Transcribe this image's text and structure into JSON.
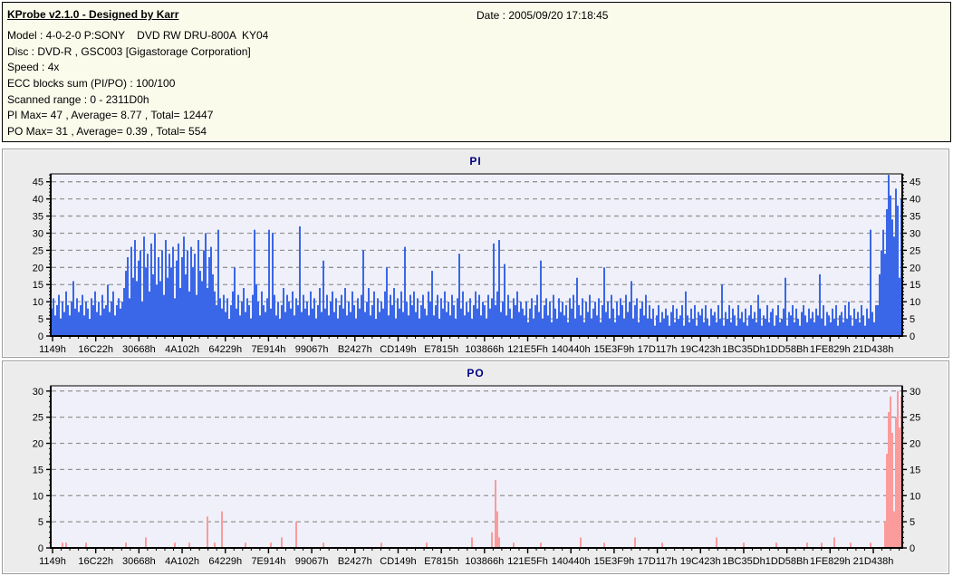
{
  "header": {
    "title": "KProbe v2.1.0 - Designed by Karr",
    "date": "Date : 2005/09/20 17:18:45",
    "lines": [
      "Model : 4-0-2-0 P:SONY    DVD RW DRU-800A  KY04",
      "Disc : DVD-R , GSC003 [Gigastorage Corporation]",
      "Speed : 4x",
      "ECC blocks sum (PI/PO) : 100/100",
      "Scanned range : 0 - 2311D0h",
      "PI Max= 47 , Average= 8.77 , Total= 12447",
      "PO Max= 31 , Average= 0.39 , Total= 554"
    ]
  },
  "colors": {
    "header_bg": "#fbfbec",
    "panel_bg": "#ececec",
    "plot_bg": "#f0f0fa",
    "grid": "#959595",
    "axis": "#000000",
    "title_text": "#000080",
    "pi_bar": "#3a67e8",
    "po_bar": "#fb9b9b"
  },
  "x_labels": [
    "1149h",
    "16C22h",
    "30668h",
    "4A102h",
    "64229h",
    "7E914h",
    "99067h",
    "B2427h",
    "CD149h",
    "E7815h",
    "103866h",
    "121E5Fh",
    "140440h",
    "15E3F9h",
    "17D117h",
    "19C423h",
    "1BC35Dh",
    "1DD58Bh",
    "1FE829h",
    "21D438h"
  ],
  "chart_data": [
    {
      "type": "bar",
      "title": "PI",
      "color": "#3a67e8",
      "ylim": [
        0,
        47.3
      ],
      "yticks": [
        0,
        5,
        10,
        15,
        20,
        25,
        30,
        35,
        40,
        45
      ],
      "grid": "dashed",
      "legend": "none",
      "x_axis_note": "hex sector addresses, scanned range 0 - 2311D0h",
      "stats": {
        "max": 47,
        "average": 8.77,
        "total": 12447
      },
      "values": [
        8,
        11,
        6,
        9,
        12,
        5,
        10,
        7,
        13,
        9,
        6,
        10,
        16,
        8,
        11,
        7,
        9,
        12,
        6,
        10,
        8,
        5,
        11,
        9,
        13,
        7,
        10,
        6,
        12,
        8,
        9,
        15,
        7,
        10,
        13,
        6,
        9,
        11,
        8,
        10,
        14,
        19,
        23,
        11,
        26,
        17,
        28,
        16,
        22,
        25,
        10,
        29,
        20,
        24,
        13,
        27,
        18,
        30,
        15,
        23,
        16,
        25,
        12,
        28,
        17,
        24,
        20,
        26,
        11,
        22,
        27,
        14,
        23,
        29,
        18,
        25,
        13,
        26,
        20,
        24,
        12,
        28,
        19,
        16,
        25,
        30,
        14,
        23,
        26,
        18,
        13,
        9,
        31,
        11,
        8,
        12,
        7,
        11,
        5,
        9,
        13,
        20,
        8,
        12,
        6,
        10,
        14,
        7,
        11,
        9,
        5,
        12,
        31,
        15,
        10,
        6,
        13,
        9,
        7,
        11,
        31,
        8,
        30,
        12,
        6,
        10,
        5,
        9,
        14,
        7,
        12,
        10,
        8,
        13,
        6,
        11,
        9,
        32,
        7,
        12,
        8,
        10,
        6,
        13,
        8,
        11,
        5,
        9,
        14,
        7,
        22,
        8,
        12,
        6,
        10,
        13,
        7,
        11,
        5,
        9,
        12,
        8,
        14,
        6,
        10,
        7,
        13,
        9,
        5,
        11,
        8,
        12,
        25,
        7,
        10,
        14,
        6,
        9,
        13,
        5,
        11,
        7,
        10,
        8,
        13,
        20,
        6,
        12,
        9,
        14,
        5,
        11,
        8,
        13,
        7,
        26,
        10,
        6,
        12,
        9,
        13,
        7,
        11,
        5,
        9,
        12,
        8,
        6,
        13,
        10,
        19,
        6,
        9,
        12,
        5,
        11,
        8,
        13,
        7,
        10,
        6,
        12,
        9,
        5,
        11,
        24,
        8,
        13,
        6,
        10,
        7,
        11,
        5,
        9,
        13,
        8,
        12,
        6,
        10,
        9,
        5,
        12,
        8,
        11,
        27,
        9,
        13,
        28,
        7,
        10,
        21,
        6,
        12,
        8,
        5,
        11,
        9,
        13,
        7,
        10,
        8,
        6,
        10,
        4,
        8,
        11,
        5,
        9,
        12,
        7,
        22,
        5,
        9,
        11,
        6,
        10,
        4,
        12,
        8,
        5,
        11,
        7,
        10,
        6,
        9,
        4,
        11,
        8,
        12,
        5,
        17,
        9,
        6,
        11,
        4,
        10,
        7,
        12,
        5,
        8,
        10,
        6,
        11,
        4,
        9,
        20,
        7,
        10,
        5,
        12,
        8,
        4,
        10,
        6,
        11,
        9,
        5,
        12,
        7,
        10,
        16,
        5,
        9,
        11,
        4,
        8,
        10,
        6,
        12,
        5,
        9,
        5,
        8,
        3,
        6,
        9,
        4,
        7,
        5,
        8,
        6,
        3,
        7,
        9,
        4,
        8,
        5,
        6,
        9,
        3,
        13,
        6,
        4,
        8,
        5,
        9,
        3,
        7,
        6,
        8,
        4,
        9,
        5,
        3,
        8,
        6,
        7,
        4,
        9,
        5,
        15,
        3,
        7,
        5,
        9,
        4,
        8,
        6,
        3,
        9,
        5,
        7,
        4,
        8,
        3,
        6,
        9,
        5,
        7,
        4,
        12,
        8,
        3,
        6,
        5,
        9,
        4,
        7,
        8,
        3,
        6,
        9,
        4,
        5,
        8,
        17,
        3,
        7,
        6,
        9,
        4,
        8,
        5,
        3,
        7,
        9,
        6,
        4,
        8,
        5,
        7,
        4,
        8,
        6,
        18,
        5,
        9,
        3,
        7,
        6,
        4,
        8,
        5,
        9,
        3,
        6,
        7,
        4,
        9,
        5,
        10,
        6,
        3,
        8,
        5,
        7,
        4,
        9,
        6,
        3,
        8,
        5,
        31,
        7,
        4,
        9,
        9,
        18,
        25,
        31,
        24,
        37,
        47,
        41,
        34,
        29,
        43,
        38,
        17,
        40
      ]
    },
    {
      "type": "bar",
      "title": "PO",
      "color": "#fb9b9b",
      "ylim": [
        0,
        31
      ],
      "yticks": [
        0,
        5,
        10,
        15,
        20,
        25,
        30
      ],
      "grid": "dashed",
      "legend": "none",
      "x_axis_note": "hex sector addresses, scanned range 0 - 2311D0h",
      "stats": {
        "max": 31,
        "average": 0.39,
        "total": 554
      },
      "n": 470,
      "points": [
        [
          6,
          1
        ],
        [
          8,
          1
        ],
        [
          19,
          1
        ],
        [
          41,
          1
        ],
        [
          52,
          2
        ],
        [
          68,
          1
        ],
        [
          76,
          1
        ],
        [
          86,
          6
        ],
        [
          90,
          1
        ],
        [
          94,
          7
        ],
        [
          107,
          1
        ],
        [
          121,
          1
        ],
        [
          127,
          2
        ],
        [
          135,
          5
        ],
        [
          150,
          1
        ],
        [
          182,
          1
        ],
        [
          207,
          1
        ],
        [
          232,
          2
        ],
        [
          243,
          3
        ],
        [
          245,
          13
        ],
        [
          246,
          7
        ],
        [
          247,
          2
        ],
        [
          255,
          1
        ],
        [
          270,
          1
        ],
        [
          292,
          2
        ],
        [
          305,
          1
        ],
        [
          322,
          2
        ],
        [
          337,
          1
        ],
        [
          367,
          2
        ],
        [
          382,
          1
        ],
        [
          400,
          1
        ],
        [
          417,
          1
        ],
        [
          425,
          1
        ],
        [
          432,
          2
        ],
        [
          441,
          1
        ],
        [
          452,
          1
        ],
        [
          460,
          5
        ],
        [
          461,
          18
        ],
        [
          462,
          26
        ],
        [
          463,
          29
        ],
        [
          464,
          22
        ],
        [
          465,
          7
        ],
        [
          466,
          25
        ],
        [
          467,
          30
        ],
        [
          468,
          23
        ],
        [
          469,
          29
        ]
      ]
    }
  ]
}
